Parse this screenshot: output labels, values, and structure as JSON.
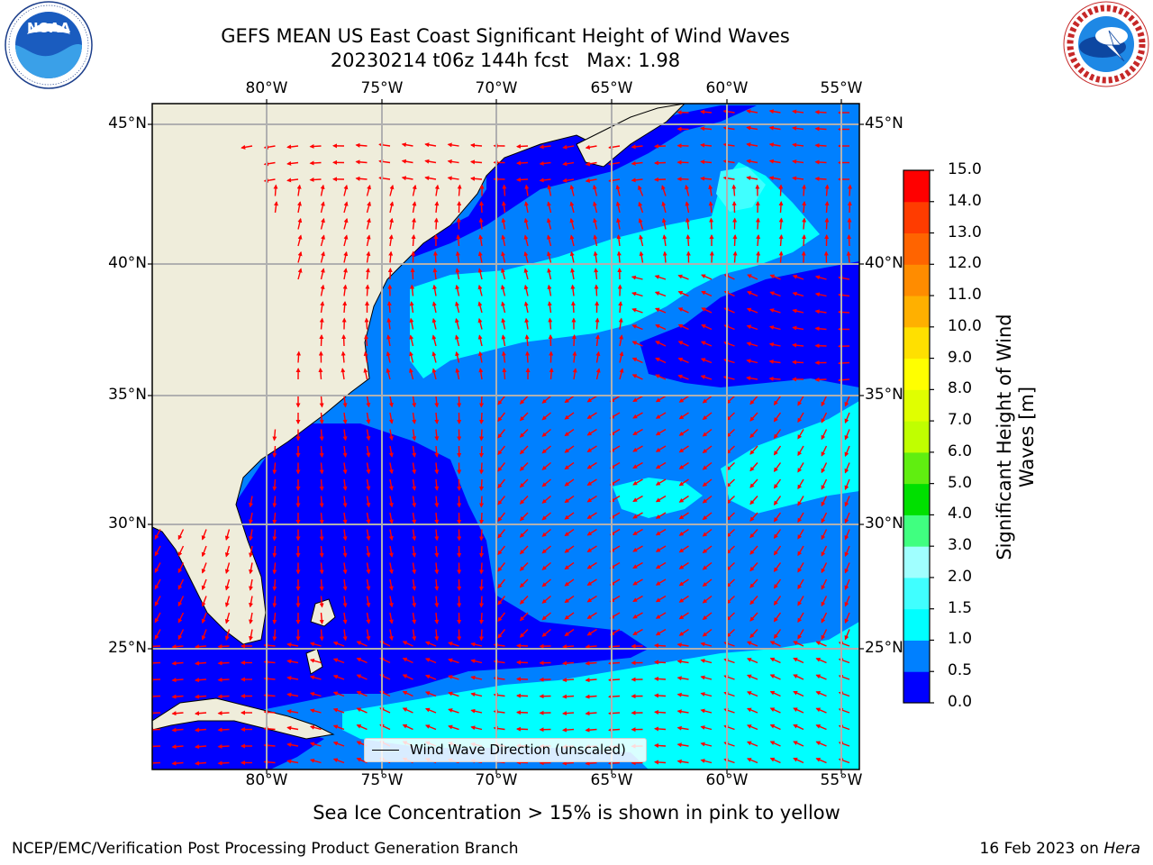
{
  "title": {
    "line1": "GEFS MEAN US East Coast Significant Height of Wind Waves",
    "line2": "20230214 t06z 144h fcst   Max: 1.98"
  },
  "logos": {
    "left": {
      "name": "NOAA",
      "text": "NOAA",
      "ring_text": "NATIONAL OCEANIC AND ATMOSPHERIC ADMINISTRATION · U.S. DEPARTMENT OF COMMERCE"
    },
    "right": {
      "name": "National Weather Service",
      "ring_text": "NATIONAL WEATHER SERVICE"
    }
  },
  "map": {
    "lon_ticks": [
      "80°W",
      "75°W",
      "70°W",
      "65°W",
      "60°W",
      "55°W"
    ],
    "lat_ticks": [
      "45°N",
      "40°N",
      "35°N",
      "30°N",
      "25°N"
    ],
    "gridlines": true,
    "legend": {
      "label": "Wind Wave Direction (unscaled)",
      "placement": "bottom-center"
    },
    "arrow_color": "#ff0000",
    "land_color": "#efeddb",
    "coast_color": "#000000",
    "grid_color": "#b0b0b0"
  },
  "colorbar": {
    "title": "Significant Height of Wind Waves [m]",
    "tick_labels": [
      "0.0",
      "0.5",
      "1.0",
      "1.5",
      "2.0",
      "3.0",
      "4.0",
      "5.0",
      "6.0",
      "7.0",
      "8.0",
      "9.0",
      "10.0",
      "11.0",
      "12.0",
      "13.0",
      "14.0",
      "15.0"
    ],
    "bins": [
      {
        "from": 0.0,
        "to": 0.5,
        "color": "#0000ff"
      },
      {
        "from": 0.5,
        "to": 1.0,
        "color": "#0080ff"
      },
      {
        "from": 1.0,
        "to": 1.5,
        "color": "#00ffff"
      },
      {
        "from": 1.5,
        "to": 2.0,
        "color": "#40ffff"
      },
      {
        "from": 2.0,
        "to": 3.0,
        "color": "#a0ffff"
      },
      {
        "from": 3.0,
        "to": 4.0,
        "color": "#40ff80"
      },
      {
        "from": 4.0,
        "to": 5.0,
        "color": "#00e000"
      },
      {
        "from": 5.0,
        "to": 6.0,
        "color": "#60ee10"
      },
      {
        "from": 6.0,
        "to": 7.0,
        "color": "#c0ff00"
      },
      {
        "from": 7.0,
        "to": 8.0,
        "color": "#e0ff00"
      },
      {
        "from": 8.0,
        "to": 9.0,
        "color": "#ffff00"
      },
      {
        "from": 9.0,
        "to": 10.0,
        "color": "#ffe000"
      },
      {
        "from": 10.0,
        "to": 11.0,
        "color": "#ffb000"
      },
      {
        "from": 11.0,
        "to": 12.0,
        "color": "#ff8c00"
      },
      {
        "from": 12.0,
        "to": 13.0,
        "color": "#ff6400"
      },
      {
        "from": 13.0,
        "to": 14.0,
        "color": "#ff3c00"
      },
      {
        "from": 14.0,
        "to": 15.0,
        "color": "#ff0000"
      }
    ]
  },
  "note": "Sea Ice Concentration > 15% is shown in pink to yellow",
  "footer": {
    "left": "NCEP/EMC/Verification Post Processing Product Generation Branch",
    "right_prefix": "16 Feb 2023 on ",
    "right_machine": "Hera"
  }
}
